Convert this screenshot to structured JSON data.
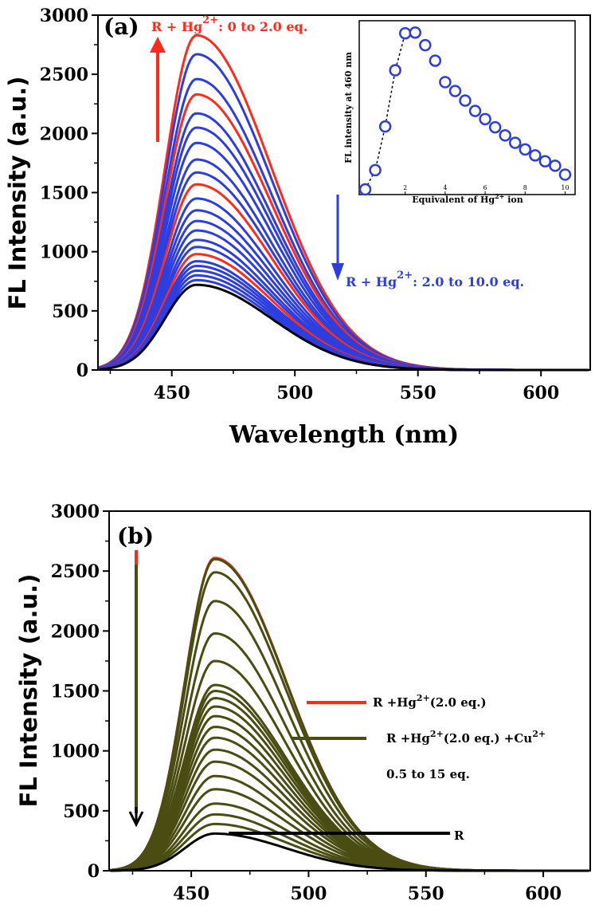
{
  "chart_data": [
    {
      "id": "a",
      "type": "line",
      "panel_label": "(a)",
      "xlabel": "Wavelength (nm)",
      "ylabel": "FL Intensity (a.u.)",
      "xlim": [
        420,
        620
      ],
      "ylim": [
        0,
        3000
      ],
      "xticks": [
        450,
        500,
        550,
        600
      ],
      "yticks": [
        0,
        500,
        1000,
        1500,
        2000,
        2500,
        3000
      ],
      "peak_wavelength": 460,
      "series": [
        {
          "name": "R",
          "color": "#000000",
          "peak": 720
        },
        {
          "name": "red",
          "color": "#ff2a1a",
          "peaks": [
            980,
            1570,
            2330,
            2830
          ]
        },
        {
          "name": "blue",
          "color": "#2d3ee0",
          "peaks": [
            760,
            800,
            840,
            880,
            920,
            1040,
            1100,
            1180,
            1260,
            1350,
            1450,
            1670,
            1780,
            1920,
            2050,
            2170,
            2460,
            2670
          ]
        }
      ],
      "annotations": {
        "red": {
          "prefix": "R + Hg",
          "sup": "2+",
          "suffix": ": 0 to 2.0 eq."
        },
        "blue": {
          "prefix": "R + Hg",
          "sup": "2+",
          "suffix": ": 2.0 to 10.0 eq."
        }
      },
      "inset": {
        "type": "scatter",
        "xlabel_prefix": "Equivalent of Hg",
        "xlabel_sup": "2+",
        "xlabel_suffix": " ion",
        "ylabel": "FL intensity at 460 nm",
        "xlim": [
          -0.3,
          10.5
        ],
        "ylim": [
          650,
          3000
        ],
        "xticks": [
          0,
          2,
          4,
          6,
          8,
          10
        ],
        "x": [
          0,
          0.5,
          1.0,
          1.5,
          2.0,
          2.5,
          3.0,
          3.5,
          4.0,
          4.5,
          5.0,
          5.5,
          6.0,
          6.5,
          7.0,
          7.5,
          8.0,
          8.5,
          9.0,
          9.5,
          10.0
        ],
        "y": [
          720,
          980,
          1570,
          2330,
          2830,
          2840,
          2670,
          2460,
          2170,
          2050,
          1920,
          1780,
          1670,
          1560,
          1450,
          1350,
          1260,
          1180,
          1100,
          1040,
          920
        ]
      }
    },
    {
      "id": "b",
      "type": "line",
      "panel_label": "(b)",
      "ylabel": "FL Intensity (a.u.)",
      "xlim": [
        415,
        620
      ],
      "ylim": [
        0,
        3000
      ],
      "xticks": [
        450,
        500,
        550,
        600
      ],
      "yticks": [
        0,
        500,
        1000,
        1500,
        2000,
        2500,
        3000
      ],
      "peak_wavelength": 460,
      "series": [
        {
          "name": "R",
          "color": "#000000",
          "peak": 310
        },
        {
          "name": "R +Hg2+(2.0 eq.)",
          "color": "#ff2a1a",
          "peak": 2610
        },
        {
          "name": "R +Hg2+(2.0 eq.) +Cu2+",
          "color": "#4a4d12",
          "peaks": [
            390,
            470,
            560,
            680,
            790,
            910,
            1010,
            1110,
            1200,
            1290,
            1370,
            1440,
            1500,
            1550,
            1750,
            1980,
            2250,
            2490,
            2600
          ]
        }
      ],
      "legend": [
        {
          "prefix": "R +Hg",
          "sup": "2+",
          "suffix": "(2.0 eq.)"
        },
        {
          "prefix": "R +Hg",
          "sup": "2+",
          "suffix": "(2.0 eq.) +Cu",
          "sup2": "2+"
        },
        {
          "text": "0.5 to 15 eq."
        },
        {
          "text": "R"
        }
      ]
    }
  ]
}
